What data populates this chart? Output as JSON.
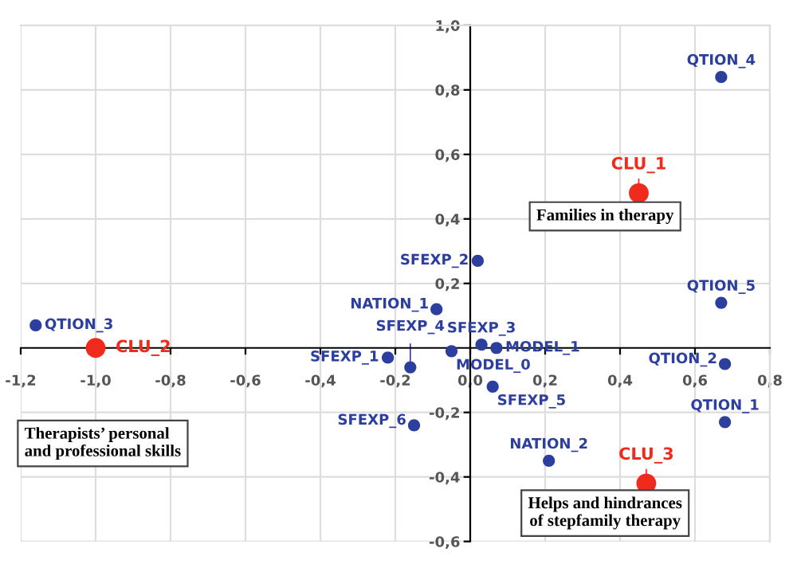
{
  "chart_data": {
    "type": "scatter",
    "series": [
      {
        "name": "QTION_4",
        "color": "#2d3f9e",
        "x": [
          0.67
        ],
        "values": [
          0.84
        ]
      },
      {
        "name": "SFEXP_2",
        "color": "#2d3f9e",
        "x": [
          0.02
        ],
        "values": [
          0.27
        ]
      },
      {
        "name": "QTION_3",
        "color": "#2d3f9e",
        "x": [
          -1.16
        ],
        "values": [
          0.07
        ]
      },
      {
        "name": "NATION_1",
        "color": "#2d3f9e",
        "x": [
          -0.09
        ],
        "values": [
          0.12
        ]
      },
      {
        "name": "SFEXP_1",
        "color": "#2d3f9e",
        "x": [
          -0.22
        ],
        "values": [
          -0.03
        ]
      },
      {
        "name": "SFEXP_4",
        "color": "#2d3f9e",
        "x": [
          -0.16
        ],
        "values": [
          -0.06
        ]
      },
      {
        "name": "MODEL_0",
        "color": "#2d3f9e",
        "x": [
          -0.05
        ],
        "values": [
          -0.01
        ]
      },
      {
        "name": "SFEXP_3",
        "color": "#2d3f9e",
        "x": [
          0.03
        ],
        "values": [
          0.01
        ]
      },
      {
        "name": "MODEL_1",
        "color": "#2d3f9e",
        "x": [
          0.07
        ],
        "values": [
          0.0
        ]
      },
      {
        "name": "SFEXP_5",
        "color": "#2d3f9e",
        "x": [
          0.06
        ],
        "values": [
          -0.12
        ]
      },
      {
        "name": "SFEXP_6",
        "color": "#2d3f9e",
        "x": [
          -0.15
        ],
        "values": [
          -0.24
        ]
      },
      {
        "name": "QTION_5",
        "color": "#2d3f9e",
        "x": [
          0.67
        ],
        "values": [
          0.14
        ]
      },
      {
        "name": "QTION_2",
        "color": "#2d3f9e",
        "x": [
          0.68
        ],
        "values": [
          -0.05
        ]
      },
      {
        "name": "QTION_1",
        "color": "#2d3f9e",
        "x": [
          0.68
        ],
        "values": [
          -0.23
        ]
      },
      {
        "name": "NATION_2",
        "color": "#2d3f9e",
        "x": [
          0.21
        ],
        "values": [
          -0.35
        ]
      },
      {
        "name": "CLU_1",
        "color": "#f02a1c",
        "x": [
          0.45
        ],
        "values": [
          0.48
        ]
      },
      {
        "name": "CLU_2",
        "color": "#f02a1c",
        "x": [
          -1.0
        ],
        "values": [
          0.0
        ]
      },
      {
        "name": "CLU_3",
        "color": "#f02a1c",
        "x": [
          0.47
        ],
        "values": [
          -0.42
        ]
      }
    ],
    "annotations": [
      "Families in therapy",
      "Therapists’ personal\nand professional skills",
      "Helps and hindrances\nof stepfamily therapy"
    ],
    "xlim": [
      -1.2,
      0.8
    ],
    "ylim": [
      -0.6,
      1.0
    ],
    "xticks": [
      {
        "value": -1.2,
        "label": "-1,2"
      },
      {
        "value": -1.0,
        "label": "-1,0"
      },
      {
        "value": -0.8,
        "label": "-0,8"
      },
      {
        "value": -0.6,
        "label": "-0,6"
      },
      {
        "value": -0.4,
        "label": "-0,4"
      },
      {
        "value": -0.2,
        "label": "-0,2"
      },
      {
        "value": 0.0,
        "label": "0,0"
      },
      {
        "value": 0.2,
        "label": "0,2"
      },
      {
        "value": 0.4,
        "label": "0,4"
      },
      {
        "value": 0.6,
        "label": "0,6"
      },
      {
        "value": 0.8,
        "label": "0,8"
      }
    ],
    "yticks": [
      {
        "value": -0.6,
        "label": "-0,6"
      },
      {
        "value": -0.4,
        "label": "-0,4"
      },
      {
        "value": -0.2,
        "label": "-0,2"
      },
      {
        "value": 0.2,
        "label": "0,2"
      },
      {
        "value": 0.4,
        "label": "0,4"
      },
      {
        "value": 0.6,
        "label": "0,6"
      },
      {
        "value": 0.8,
        "label": "0,8"
      },
      {
        "value": 1.0,
        "label": "1,0"
      }
    ],
    "grid": true,
    "marker": "circle"
  }
}
